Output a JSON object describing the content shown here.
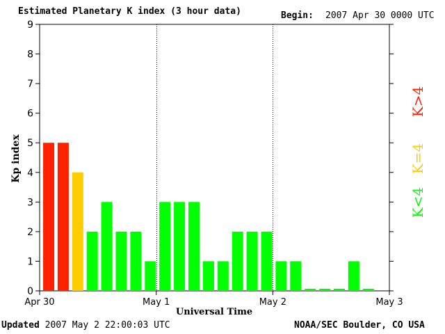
{
  "header": {
    "title": "Estimated Planetary K index (3 hour data)",
    "begin_label": "Begin:",
    "begin_value": "2007 Apr 30 0000 UTC"
  },
  "footer": {
    "updated_label": "Updated",
    "updated_value": "2007 May  2 22:00:03 UTC",
    "source": "NOAA/SEC Boulder, CO USA"
  },
  "legend": [
    {
      "label": "K>4",
      "color": "#ff2200"
    },
    {
      "label": "K=4",
      "color": "#ffcc00"
    },
    {
      "label": "K<4",
      "color": "#00ff00"
    }
  ],
  "chart_data": {
    "type": "bar",
    "title": "Estimated Planetary K index (3 hour data)",
    "xlabel": "Universal Time",
    "ylabel": "Kp index",
    "ylim": [
      0,
      9
    ],
    "yticks": [
      0,
      1,
      2,
      3,
      4,
      5,
      6,
      7,
      8,
      9
    ],
    "x_tick_labels": [
      "Apr 30",
      "May 1",
      "May 2",
      "May 3"
    ],
    "day_dividers": [
      "May 1",
      "May 2"
    ],
    "values": [
      5,
      5,
      4,
      2,
      3,
      2,
      2,
      1,
      3,
      3,
      3,
      1,
      1,
      2,
      2,
      2,
      1,
      1,
      0,
      0,
      0,
      1,
      0
    ],
    "colors": {
      "gt4": "#ff2200",
      "eq4": "#ffcc00",
      "lt4": "#00ff00"
    }
  }
}
